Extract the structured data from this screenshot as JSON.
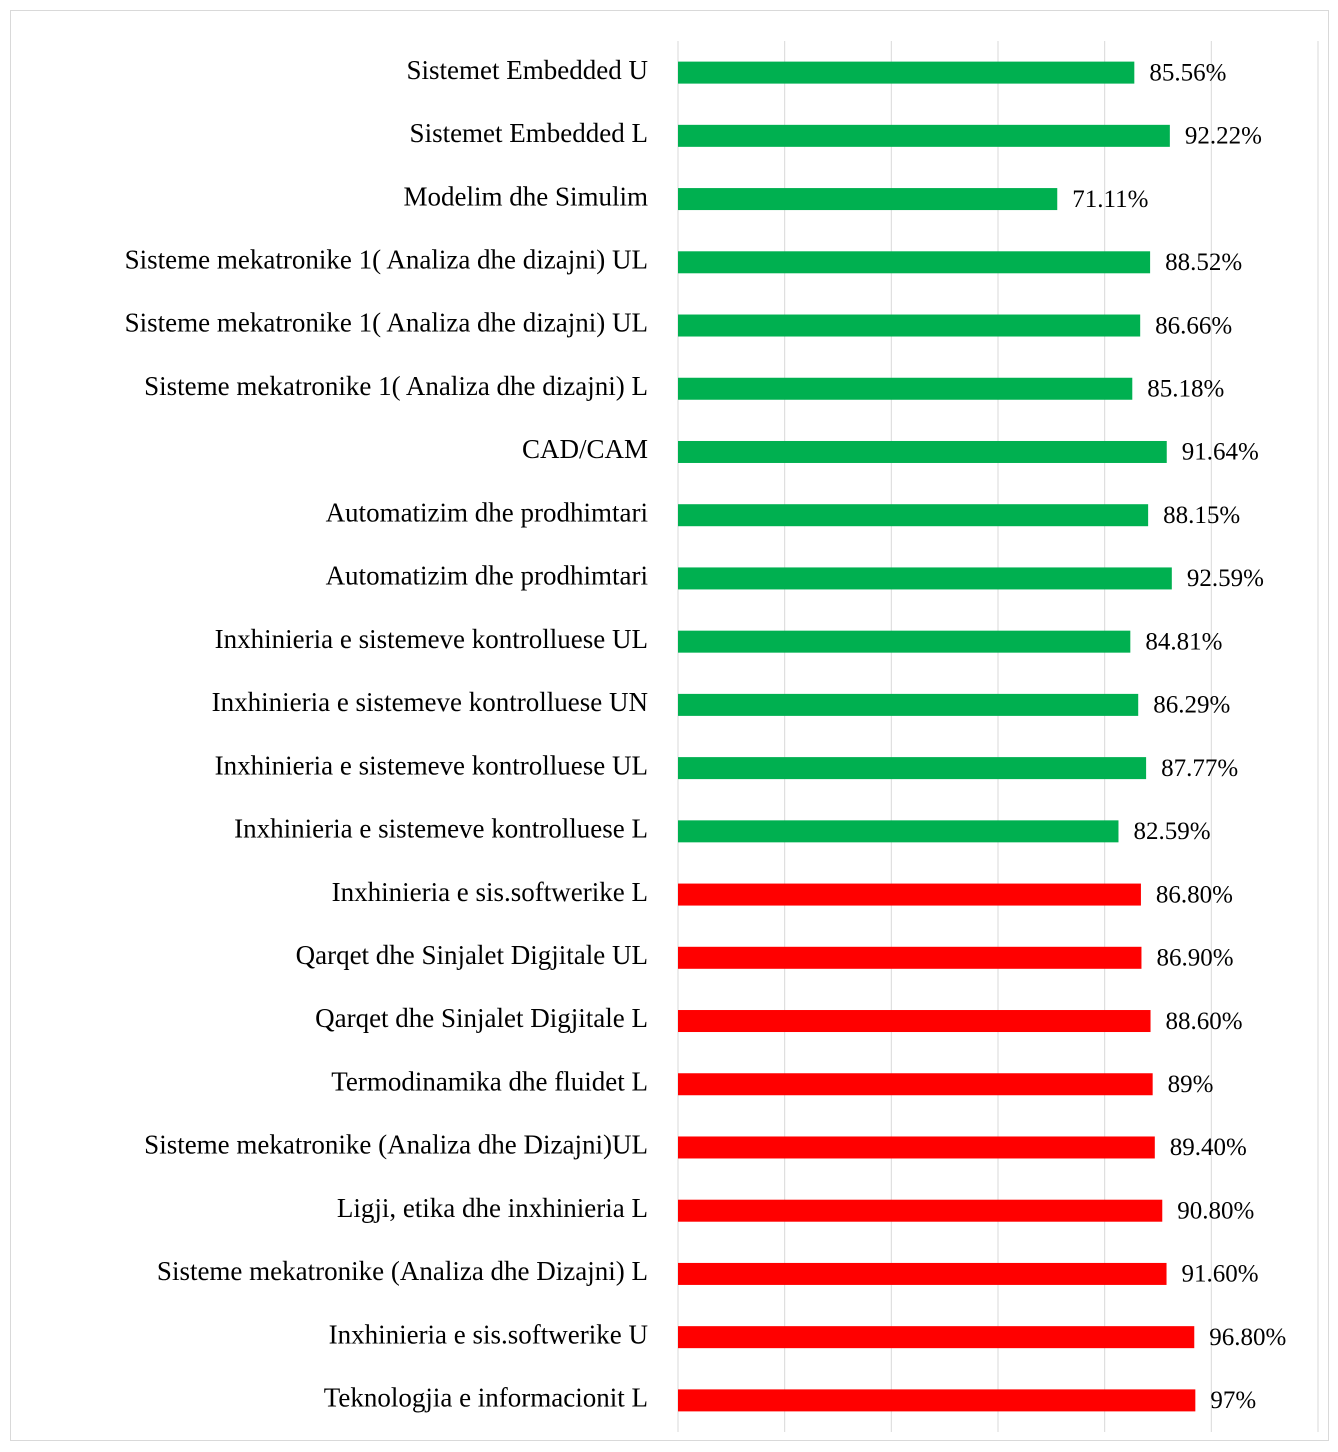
{
  "chart_data": {
    "type": "barh",
    "categories": [
      "Sistemet Embedded U",
      "Sistemet Embedded L",
      "Modelim dhe Simulim",
      "Sisteme mekatronike 1( Analiza dhe dizajni) UL",
      "Sisteme mekatronike 1( Analiza dhe dizajni) UL",
      "Sisteme mekatronike 1( Analiza dhe dizajni) L",
      "CAD/CAM",
      "Automatizim dhe prodhimtari",
      "Automatizim dhe prodhimtari",
      "Inxhinieria e sistemeve kontrolluese UL",
      "Inxhinieria e sistemeve kontrolluese UN",
      "Inxhinieria e sistemeve kontrolluese UL",
      "Inxhinieria e sistemeve kontrolluese L",
      "Inxhinieria e sis.softwerike L",
      "Qarqet dhe Sinjalet Digjitale UL",
      "Qarqet dhe Sinjalet Digjitale L",
      "Termodinamika dhe fluidet L",
      "Sisteme mekatronike (Analiza dhe Dizajni)UL",
      "Ligji, etika dhe inxhinieria L",
      "Sisteme mekatronike (Analiza dhe Dizajni) L",
      "Inxhinieria e sis.softwerike U",
      "Teknologjia e informacionit L"
    ],
    "values": [
      85.56,
      92.22,
      71.11,
      88.52,
      86.66,
      85.18,
      91.64,
      88.15,
      92.59,
      84.81,
      86.29,
      87.77,
      82.59,
      86.8,
      86.9,
      88.6,
      89,
      89.4,
      90.8,
      91.6,
      96.8,
      97
    ],
    "value_labels": [
      "85.56%",
      "92.22%",
      "71.11%",
      "88.52%",
      "86.66%",
      "85.18%",
      "91.64%",
      "88.15%",
      "92.59%",
      "84.81%",
      "86.29%",
      "87.77%",
      "82.59%",
      "86.80%",
      "86.90%",
      "88.60%",
      "89%",
      "89.40%",
      "90.80%",
      "91.60%",
      "96.80%",
      "97%"
    ],
    "colors": [
      "#00b050",
      "#00b050",
      "#00b050",
      "#00b050",
      "#00b050",
      "#00b050",
      "#00b050",
      "#00b050",
      "#00b050",
      "#00b050",
      "#00b050",
      "#00b050",
      "#00b050",
      "#ff0000",
      "#ff0000",
      "#ff0000",
      "#ff0000",
      "#ff0000",
      "#ff0000",
      "#ff0000",
      "#ff0000",
      "#ff0000"
    ],
    "xlim": [
      0,
      120
    ],
    "xticks": [
      0,
      20,
      40,
      60,
      80,
      100,
      120
    ],
    "grid": true
  }
}
